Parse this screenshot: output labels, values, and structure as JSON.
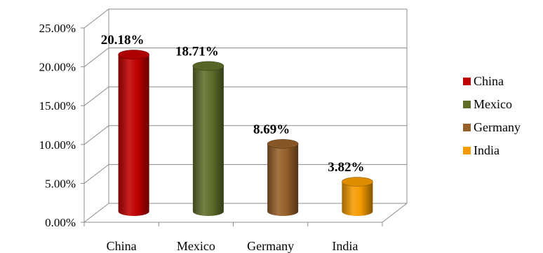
{
  "chart_data": {
    "type": "bar",
    "style": "3d-cylinder",
    "categories": [
      "China",
      "Mexico",
      "Germany",
      "India"
    ],
    "values": [
      20.18,
      18.71,
      8.69,
      3.82
    ],
    "data_labels": [
      "20.18%",
      "18.71%",
      "8.69%",
      "3.82%"
    ],
    "yticks": [
      "0.00%",
      "5.00%",
      "10.00%",
      "15.00%",
      "20.00%",
      "25.00%"
    ],
    "ylim": [
      0,
      25
    ],
    "grid": true,
    "legend_position": "right",
    "title": "",
    "xlabel": "",
    "ylabel": "",
    "colors": [
      "#c00000",
      "#5f6f2a",
      "#96602a",
      "#f59b00"
    ],
    "legend": [
      {
        "label": "China",
        "color": "#c00000"
      },
      {
        "label": "Mexico",
        "color": "#5f6f2a"
      },
      {
        "label": "Germany",
        "color": "#96602a"
      },
      {
        "label": "India",
        "color": "#f59b00"
      }
    ]
  }
}
